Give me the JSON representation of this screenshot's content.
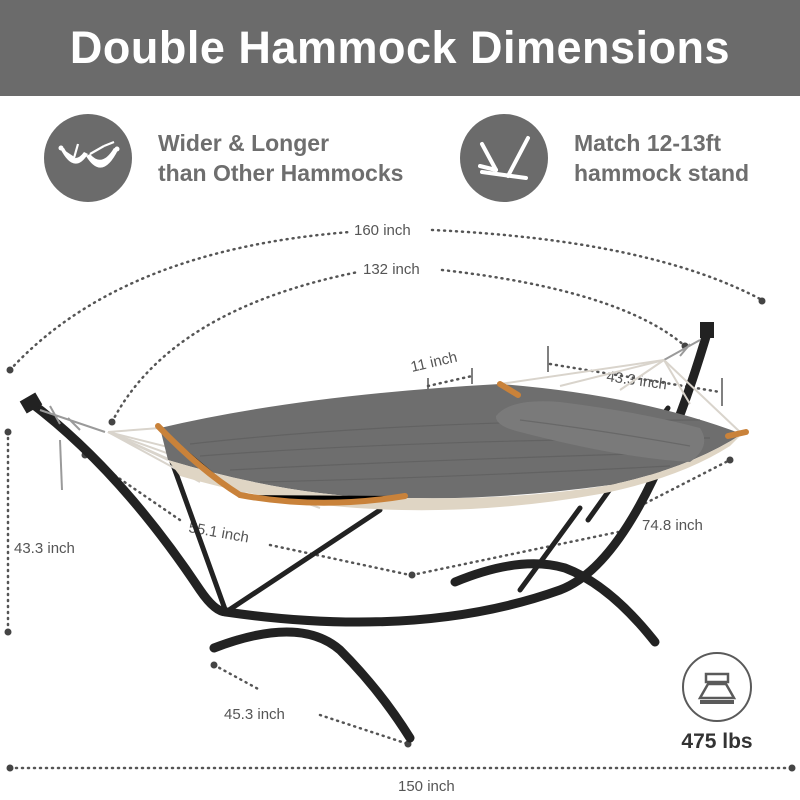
{
  "header": {
    "title": "Double Hammock Dimensions"
  },
  "features": [
    {
      "icon": "double-hammock-icon",
      "line1": "Wider & Longer",
      "line2": "than Other Hammocks"
    },
    {
      "icon": "hammock-stand-icon",
      "line1": "Match 12-13ft",
      "line2": "hammock stand"
    }
  ],
  "dimensions": {
    "overall_length": "160 inch",
    "bed_length": "132 inch",
    "spreader_gap": "11 inch",
    "pillow_width": "43.3 inch",
    "height": "43.3 inch",
    "bed_width": "55.1 inch",
    "diagonal": "74.8 inch",
    "base_width": "45.3 inch",
    "stand_length": "150 inch"
  },
  "capacity": {
    "icon": "weight-icon",
    "label": "475 lbs"
  },
  "colors": {
    "banner": "#6b6b6b",
    "fabric": "#6e6e6e",
    "frame": "#222222",
    "wood": "#c9823a",
    "text_gray": "#6e6e6e"
  }
}
